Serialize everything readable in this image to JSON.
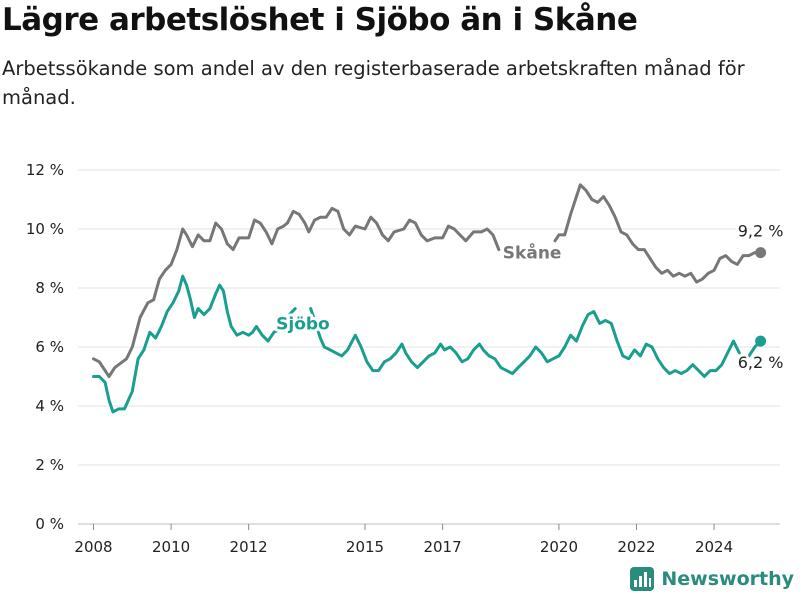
{
  "title": "Lägre arbetslöshet i Sjöbo än i Skåne",
  "subtitle": "Arbetssökande som andel av den registerbaserade arbetskraften månad för månad.",
  "brand": {
    "name": "Newsworthy",
    "color": "#2a8b7e",
    "icon": "bar-chart-logo-icon"
  },
  "chart_data": {
    "type": "line",
    "title": "Lägre arbetslöshet i Sjöbo än i Skåne",
    "ylim": [
      0,
      12
    ],
    "xlim": [
      2007.6,
      2025.7
    ],
    "grid": true,
    "legend": "inline labels",
    "y_ticks": [
      {
        "value": 0,
        "label": "0 %"
      },
      {
        "value": 2,
        "label": "2 %"
      },
      {
        "value": 4,
        "label": "4 %"
      },
      {
        "value": 6,
        "label": "6 %"
      },
      {
        "value": 8,
        "label": "8 %"
      },
      {
        "value": 10,
        "label": "10 %"
      },
      {
        "value": 12,
        "label": "12 %"
      }
    ],
    "x_ticks": [
      {
        "value": 2008,
        "label": "2008"
      },
      {
        "value": 2010,
        "label": "2010"
      },
      {
        "value": 2012,
        "label": "2012"
      },
      {
        "value": 2015,
        "label": "2015"
      },
      {
        "value": 2017,
        "label": "2017"
      },
      {
        "value": 2020,
        "label": "2020"
      },
      {
        "value": 2022,
        "label": "2022"
      },
      {
        "value": 2024,
        "label": "2024"
      }
    ],
    "series": [
      {
        "name": "Skåne",
        "color": "#777777",
        "end_label": "9,2 %",
        "segments": [
          [
            [
              2008.0,
              5.6
            ],
            [
              2008.15,
              5.5
            ],
            [
              2008.4,
              5.0
            ],
            [
              2008.55,
              5.3
            ],
            [
              2008.85,
              5.6
            ],
            [
              2009.0,
              6.0
            ],
            [
              2009.2,
              7.0
            ],
            [
              2009.4,
              7.5
            ],
            [
              2009.55,
              7.6
            ],
            [
              2009.7,
              8.3
            ],
            [
              2009.85,
              8.6
            ],
            [
              2010.0,
              8.8
            ],
            [
              2010.15,
              9.3
            ],
            [
              2010.3,
              10.0
            ],
            [
              2010.4,
              9.8
            ],
            [
              2010.55,
              9.4
            ],
            [
              2010.7,
              9.8
            ],
            [
              2010.85,
              9.6
            ],
            [
              2011.0,
              9.6
            ],
            [
              2011.15,
              10.2
            ],
            [
              2011.3,
              10.0
            ],
            [
              2011.45,
              9.5
            ],
            [
              2011.6,
              9.3
            ],
            [
              2011.75,
              9.7
            ],
            [
              2012.0,
              9.7
            ],
            [
              2012.15,
              10.3
            ],
            [
              2012.3,
              10.2
            ],
            [
              2012.45,
              9.9
            ],
            [
              2012.6,
              9.5
            ],
            [
              2012.75,
              10.0
            ],
            [
              2012.9,
              10.1
            ],
            [
              2013.0,
              10.2
            ],
            [
              2013.15,
              10.6
            ],
            [
              2013.3,
              10.5
            ],
            [
              2013.45,
              10.2
            ],
            [
              2013.55,
              9.9
            ],
            [
              2013.7,
              10.3
            ],
            [
              2013.85,
              10.4
            ],
            [
              2014.0,
              10.4
            ],
            [
              2014.15,
              10.7
            ],
            [
              2014.3,
              10.6
            ],
            [
              2014.45,
              10.0
            ],
            [
              2014.6,
              9.8
            ],
            [
              2014.75,
              10.1
            ],
            [
              2015.0,
              10.0
            ],
            [
              2015.15,
              10.4
            ],
            [
              2015.3,
              10.2
            ],
            [
              2015.45,
              9.8
            ],
            [
              2015.6,
              9.6
            ],
            [
              2015.75,
              9.9
            ],
            [
              2016.0,
              10.0
            ],
            [
              2016.15,
              10.3
            ],
            [
              2016.3,
              10.2
            ],
            [
              2016.45,
              9.8
            ],
            [
              2016.6,
              9.6
            ],
            [
              2016.8,
              9.7
            ],
            [
              2017.0,
              9.7
            ],
            [
              2017.15,
              10.1
            ],
            [
              2017.3,
              10.0
            ],
            [
              2017.45,
              9.8
            ],
            [
              2017.6,
              9.6
            ],
            [
              2017.8,
              9.9
            ],
            [
              2018.0,
              9.9
            ],
            [
              2018.15,
              10.0
            ],
            [
              2018.3,
              9.8
            ],
            [
              2018.45,
              9.3
            ]
          ],
          [
            [
              2019.9,
              9.6
            ],
            [
              2020.0,
              9.8
            ],
            [
              2020.15,
              9.8
            ],
            [
              2020.3,
              10.5
            ],
            [
              2020.45,
              11.1
            ],
            [
              2020.55,
              11.5
            ],
            [
              2020.7,
              11.3
            ],
            [
              2020.85,
              11.0
            ],
            [
              2021.0,
              10.9
            ],
            [
              2021.15,
              11.1
            ],
            [
              2021.3,
              10.8
            ],
            [
              2021.45,
              10.4
            ],
            [
              2021.6,
              9.9
            ],
            [
              2021.75,
              9.8
            ],
            [
              2021.9,
              9.5
            ],
            [
              2022.05,
              9.3
            ],
            [
              2022.2,
              9.3
            ],
            [
              2022.35,
              9.0
            ],
            [
              2022.5,
              8.7
            ],
            [
              2022.65,
              8.5
            ],
            [
              2022.8,
              8.6
            ],
            [
              2022.95,
              8.4
            ],
            [
              2023.1,
              8.5
            ],
            [
              2023.25,
              8.4
            ],
            [
              2023.4,
              8.5
            ],
            [
              2023.55,
              8.2
            ],
            [
              2023.7,
              8.3
            ],
            [
              2023.85,
              8.5
            ],
            [
              2024.0,
              8.6
            ],
            [
              2024.15,
              9.0
            ],
            [
              2024.3,
              9.1
            ],
            [
              2024.45,
              8.9
            ],
            [
              2024.6,
              8.8
            ],
            [
              2024.75,
              9.1
            ],
            [
              2024.9,
              9.1
            ],
            [
              2025.05,
              9.2
            ],
            [
              2025.2,
              9.2
            ]
          ]
        ]
      },
      {
        "name": "Sjöbo",
        "color": "#1a9e8f",
        "end_label": "6,2 %",
        "segments": [
          [
            [
              2008.0,
              5.0
            ],
            [
              2008.15,
              5.0
            ],
            [
              2008.3,
              4.8
            ],
            [
              2008.4,
              4.2
            ],
            [
              2008.5,
              3.8
            ],
            [
              2008.65,
              3.9
            ],
            [
              2008.8,
              3.9
            ],
            [
              2009.0,
              4.5
            ],
            [
              2009.15,
              5.6
            ],
            [
              2009.3,
              5.9
            ],
            [
              2009.45,
              6.5
            ],
            [
              2009.6,
              6.3
            ],
            [
              2009.75,
              6.7
            ],
            [
              2009.9,
              7.2
            ],
            [
              2010.05,
              7.5
            ],
            [
              2010.2,
              7.9
            ],
            [
              2010.3,
              8.4
            ],
            [
              2010.4,
              8.1
            ],
            [
              2010.5,
              7.6
            ],
            [
              2010.6,
              7.0
            ],
            [
              2010.7,
              7.3
            ],
            [
              2010.85,
              7.1
            ],
            [
              2011.0,
              7.3
            ],
            [
              2011.15,
              7.8
            ],
            [
              2011.25,
              8.1
            ],
            [
              2011.35,
              7.9
            ],
            [
              2011.45,
              7.2
            ],
            [
              2011.55,
              6.7
            ],
            [
              2011.7,
              6.4
            ],
            [
              2011.85,
              6.5
            ],
            [
              2012.0,
              6.4
            ],
            [
              2012.1,
              6.5
            ],
            [
              2012.2,
              6.7
            ],
            [
              2012.35,
              6.4
            ],
            [
              2012.5,
              6.2
            ],
            [
              2012.65,
              6.5
            ],
            [
              2012.8,
              6.6
            ],
            [
              2012.95,
              6.6
            ],
            [
              2013.05,
              7.1
            ],
            [
              2013.2,
              7.3
            ]
          ],
          [
            [
              2013.6,
              7.3
            ],
            [
              2013.7,
              6.9
            ],
            [
              2013.85,
              6.3
            ],
            [
              2013.95,
              6.0
            ],
            [
              2014.1,
              5.9
            ],
            [
              2014.25,
              5.8
            ],
            [
              2014.4,
              5.7
            ],
            [
              2014.55,
              5.9
            ],
            [
              2014.75,
              6.4
            ],
            [
              2014.9,
              6.0
            ],
            [
              2015.05,
              5.5
            ],
            [
              2015.2,
              5.2
            ],
            [
              2015.35,
              5.2
            ],
            [
              2015.5,
              5.5
            ],
            [
              2015.65,
              5.6
            ],
            [
              2015.8,
              5.8
            ],
            [
              2015.95,
              6.1
            ],
            [
              2016.05,
              5.8
            ],
            [
              2016.2,
              5.5
            ],
            [
              2016.35,
              5.3
            ],
            [
              2016.5,
              5.5
            ],
            [
              2016.65,
              5.7
            ],
            [
              2016.8,
              5.8
            ],
            [
              2016.95,
              6.1
            ],
            [
              2017.05,
              5.9
            ],
            [
              2017.2,
              6.0
            ],
            [
              2017.35,
              5.8
            ],
            [
              2017.5,
              5.5
            ],
            [
              2017.65,
              5.6
            ],
            [
              2017.8,
              5.9
            ],
            [
              2017.95,
              6.1
            ],
            [
              2018.05,
              5.9
            ],
            [
              2018.2,
              5.7
            ],
            [
              2018.35,
              5.6
            ],
            [
              2018.5,
              5.3
            ],
            [
              2018.65,
              5.2
            ],
            [
              2018.8,
              5.1
            ],
            [
              2018.95,
              5.3
            ],
            [
              2019.1,
              5.5
            ],
            [
              2019.25,
              5.7
            ],
            [
              2019.4,
              6.0
            ],
            [
              2019.55,
              5.8
            ],
            [
              2019.7,
              5.5
            ],
            [
              2019.85,
              5.6
            ],
            [
              2020.0,
              5.7
            ],
            [
              2020.15,
              6.0
            ],
            [
              2020.3,
              6.4
            ],
            [
              2020.45,
              6.2
            ],
            [
              2020.6,
              6.7
            ],
            [
              2020.75,
              7.1
            ],
            [
              2020.9,
              7.2
            ],
            [
              2021.05,
              6.8
            ],
            [
              2021.2,
              6.9
            ],
            [
              2021.35,
              6.8
            ],
            [
              2021.5,
              6.2
            ],
            [
              2021.65,
              5.7
            ],
            [
              2021.8,
              5.6
            ],
            [
              2021.95,
              5.9
            ],
            [
              2022.1,
              5.7
            ],
            [
              2022.25,
              6.1
            ],
            [
              2022.4,
              6.0
            ],
            [
              2022.55,
              5.6
            ],
            [
              2022.7,
              5.3
            ],
            [
              2022.85,
              5.1
            ],
            [
              2023.0,
              5.2
            ],
            [
              2023.15,
              5.1
            ],
            [
              2023.3,
              5.2
            ],
            [
              2023.45,
              5.4
            ],
            [
              2023.6,
              5.2
            ],
            [
              2023.75,
              5.0
            ],
            [
              2023.9,
              5.2
            ],
            [
              2024.05,
              5.2
            ],
            [
              2024.2,
              5.4
            ],
            [
              2024.35,
              5.8
            ],
            [
              2024.5,
              6.2
            ],
            [
              2024.65,
              5.8
            ]
          ],
          [
            [
              2024.9,
              5.7
            ],
            [
              2025.05,
              6.0
            ],
            [
              2025.2,
              6.2
            ]
          ]
        ]
      }
    ]
  }
}
